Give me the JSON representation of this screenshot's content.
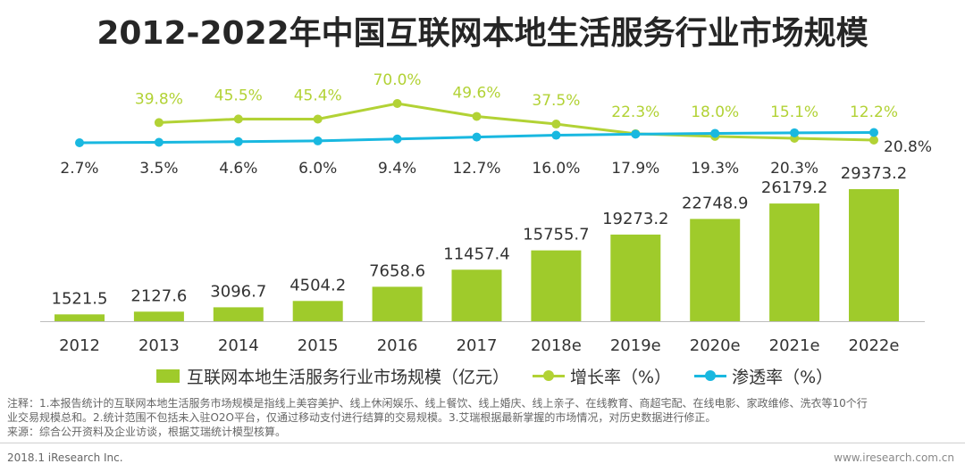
{
  "title": "2012-2022年中国互联网本地生活服务行业市场规模",
  "colors": {
    "bar": "#9fcb2b",
    "growth": "#b2d235",
    "penetration": "#19b8e0",
    "baseline": "#bdbdbd"
  },
  "chart_data": {
    "type": "bar",
    "categories": [
      "2012",
      "2013",
      "2014",
      "2015",
      "2016",
      "2017",
      "2018e",
      "2019e",
      "2020e",
      "2021e",
      "2022e"
    ],
    "series": [
      {
        "name": "互联网本地生活服务行业市场规模（亿元）",
        "type": "bar",
        "values": [
          1521.5,
          2127.6,
          3096.7,
          4504.2,
          7658.6,
          11457.4,
          15755.7,
          19273.2,
          22748.9,
          26179.2,
          29373.2
        ],
        "labels": [
          "1521.5",
          "2127.6",
          "3096.7",
          "4504.2",
          "7658.6",
          "11457.4",
          "15755.7",
          "19273.2",
          "22748.9",
          "26179.2",
          "29373.2"
        ]
      },
      {
        "name": "增长率（%）",
        "type": "line",
        "values": [
          null,
          39.8,
          45.5,
          45.4,
          70.0,
          49.6,
          37.5,
          22.3,
          18.0,
          15.1,
          12.2
        ],
        "labels": [
          "",
          "39.8%",
          "45.5%",
          "45.4%",
          "70.0%",
          "49.6%",
          "37.5%",
          "22.3%",
          "18.0%",
          "15.1%",
          "12.2%"
        ]
      },
      {
        "name": "渗透率（%）",
        "type": "line",
        "values": [
          2.7,
          3.5,
          4.6,
          6.0,
          9.4,
          12.7,
          16.0,
          17.9,
          19.3,
          20.3,
          20.8
        ],
        "labels": [
          "2.7%",
          "3.5%",
          "4.6%",
          "6.0%",
          "9.4%",
          "12.7%",
          "16.0%",
          "17.9%",
          "19.3%",
          "20.3%",
          "20.8%"
        ]
      }
    ],
    "legend": {
      "position": "bottom",
      "items": [
        "互联网本地生活服务行业市场规模（亿元）",
        "增长率（%）",
        "渗透率（%）"
      ]
    }
  },
  "notes": {
    "line1": "注释：1.本报告统计的互联网本地生活服务市场规模是指线上美容美护、线上休闲娱乐、线上餐饮、线上婚庆、线上亲子、在线教育、商超宅配、在线电影、家政维修、洗衣等10个行",
    "line2": "业交易规模总和。2.统计范围不包括未入驻O2O平台，仅通过移动支付进行结算的交易规模。3.艾瑞根据最新掌握的市场情况，对历史数据进行修正。",
    "line3": "来源：综合公开资料及企业访谈，根据艾瑞统计模型核算。"
  },
  "footer": {
    "left": "2018.1 iResearch Inc.",
    "right": "www.iresearch.com.cn"
  }
}
